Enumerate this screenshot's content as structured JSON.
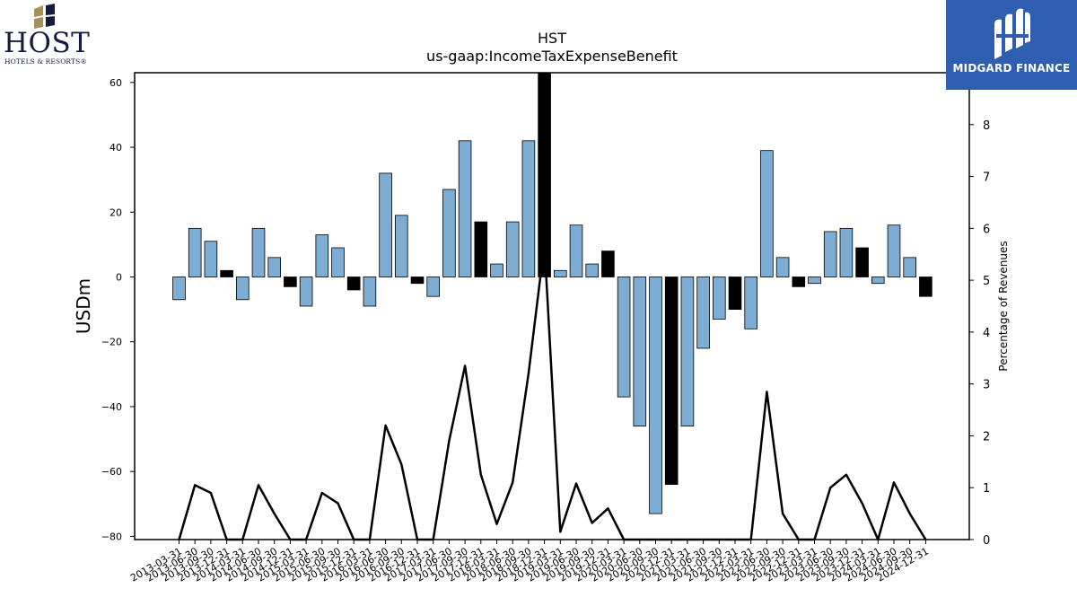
{
  "branding": {
    "host_name": "HOST",
    "host_tagline": "HOTELS & RESORTS®",
    "midgard_name": "MIDGARD FINANCE",
    "host_mark_gold": "#a88f5a",
    "host_mark_navy": "#141b3d",
    "midgard_bg": "#2f5db0"
  },
  "chart_data": {
    "type": "bar",
    "title": "HST",
    "subtitle": "us-gaap:IncomeTaxExpenseBenefit",
    "ylabel": "USDm",
    "y2label": "Percentage of Revenues",
    "ylim": [
      -81,
      63
    ],
    "y2lim": [
      0,
      9
    ],
    "yticks": [
      60,
      40,
      20,
      0,
      -20,
      -40,
      -60,
      -80
    ],
    "y2ticks": [
      0,
      1,
      2,
      3,
      4,
      5,
      6,
      7,
      8
    ],
    "ytick_labels": [
      "60",
      "40",
      "20",
      "0",
      "−20",
      "−40",
      "−60",
      "−80"
    ],
    "y2tick_labels": [
      "0",
      "1",
      "2",
      "3",
      "4",
      "5",
      "6",
      "7",
      "8"
    ],
    "bar_color": "#7eadd4",
    "q4_bar_color": "#000000",
    "line_color": "#000000",
    "categories": [
      "2013-03-31",
      "2013-06-30",
      "2013-09-30",
      "2013-12-31",
      "2014-03-31",
      "2014-06-30",
      "2014-09-30",
      "2014-12-31",
      "2015-03-31",
      "2015-06-30",
      "2015-09-30",
      "2015-12-31",
      "2016-03-31",
      "2016-06-30",
      "2016-09-30",
      "2016-12-31",
      "2017-03-31",
      "2017-06-30",
      "2017-09-30",
      "2017-12-31",
      "2018-03-31",
      "2018-06-30",
      "2018-09-30",
      "2018-12-31",
      "2019-03-31",
      "2019-06-30",
      "2019-09-30",
      "2019-12-31",
      "2020-03-31",
      "2020-06-30",
      "2020-09-30",
      "2020-12-31",
      "2021-03-31",
      "2021-06-30",
      "2021-09-30",
      "2021-12-31",
      "2022-03-31",
      "2022-06-30",
      "2022-09-30",
      "2022-12-31",
      "2023-03-31",
      "2023-06-30",
      "2023-09-30",
      "2023-12-31",
      "2024-03-31",
      "2024-06-30",
      "2024-09-30",
      "2024-12-31"
    ],
    "series": [
      {
        "values": [
          -7,
          15,
          11,
          2,
          -7,
          15,
          6,
          -3,
          -9,
          13,
          9,
          -4,
          -9,
          32,
          19,
          -2,
          -6,
          27,
          42,
          17,
          4,
          17,
          42,
          63,
          2,
          16,
          4,
          8,
          -37,
          -46,
          -73,
          -64,
          -46,
          -22,
          -13,
          -10,
          -16,
          39,
          6,
          -3,
          -2,
          14,
          15,
          9,
          -2,
          16,
          6,
          -6
        ],
        "highlight_q4": true
      },
      {
        "axis": "right",
        "type": "line",
        "values": [
          0,
          1.05,
          0.9,
          0,
          0,
          1.05,
          0.5,
          0,
          0,
          0.9,
          0.7,
          0,
          0,
          2.2,
          1.45,
          0,
          0,
          1.9,
          3.35,
          1.25,
          0.3,
          1.1,
          3.2,
          5.7,
          0.15,
          1.08,
          0.32,
          0.6,
          0,
          0,
          0,
          0,
          0,
          0,
          0,
          0,
          0,
          2.85,
          0.5,
          0,
          0,
          1.0,
          1.25,
          0.7,
          0,
          1.1,
          0.5,
          0
        ]
      }
    ]
  }
}
